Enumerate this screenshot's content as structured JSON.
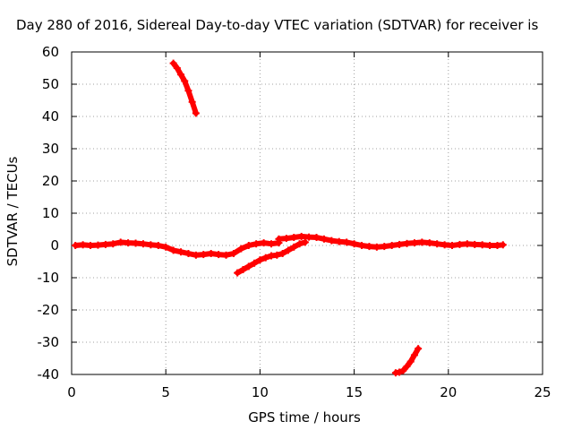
{
  "chart_data": {
    "type": "scatter",
    "title": "Day 280 of 2016, Sidereal Day-to-day VTEC variation (SDTVAR) for receiver is",
    "xlabel": "GPS time / hours",
    "ylabel": "SDTVAR / TECUs",
    "xlim": [
      0,
      25
    ],
    "ylim": [
      -40,
      60
    ],
    "xticks": [
      0,
      5,
      10,
      15,
      20,
      25
    ],
    "yticks": [
      -40,
      -30,
      -20,
      -10,
      0,
      10,
      20,
      30,
      40,
      50,
      60
    ],
    "grid": true,
    "legend": "none",
    "marker_color": "#ff0000",
    "series": [
      {
        "x": [
          0.2,
          0.6,
          1.0,
          1.4,
          1.8,
          2.2,
          2.6,
          3.0,
          3.4,
          3.8,
          4.2,
          4.6,
          5.0,
          5.4,
          5.8,
          6.2,
          6.6,
          7.0,
          7.4,
          7.8,
          8.2,
          8.6,
          9.0,
          9.4,
          9.8,
          10.2,
          10.6,
          11.0
        ],
        "y": [
          0.0,
          0.2,
          0.0,
          0.1,
          0.3,
          0.5,
          1.0,
          0.8,
          0.7,
          0.5,
          0.2,
          0.0,
          -0.5,
          -1.5,
          -2.0,
          -2.5,
          -3.0,
          -2.8,
          -2.5,
          -2.8,
          -3.0,
          -2.5,
          -1.0,
          0.0,
          0.5,
          0.8,
          0.5,
          0.8
        ]
      },
      {
        "x": [
          11.0,
          11.4,
          11.8,
          12.2,
          12.6,
          13.0,
          13.4,
          13.8,
          14.2,
          14.6,
          15.0,
          15.4,
          15.8,
          16.2,
          16.6,
          17.0,
          17.4,
          17.8,
          18.2,
          18.6,
          19.0,
          19.4,
          19.8,
          20.2,
          20.6,
          21.0,
          21.4,
          21.8,
          22.2,
          22.6,
          22.9
        ],
        "y": [
          2.0,
          2.2,
          2.5,
          2.8,
          2.6,
          2.5,
          2.0,
          1.5,
          1.2,
          1.0,
          0.5,
          0.0,
          -0.3,
          -0.5,
          -0.3,
          0.0,
          0.3,
          0.6,
          0.8,
          1.0,
          0.8,
          0.5,
          0.2,
          0.0,
          0.3,
          0.5,
          0.3,
          0.2,
          0.0,
          0.0,
          0.2
        ]
      },
      {
        "x": [
          8.8,
          9.1,
          9.4,
          9.7,
          10.0,
          10.3,
          10.6,
          10.9,
          11.2,
          11.5,
          11.8,
          12.1,
          12.4
        ],
        "y": [
          -8.5,
          -7.5,
          -6.5,
          -5.5,
          -4.5,
          -3.8,
          -3.2,
          -3.0,
          -2.5,
          -1.5,
          -0.5,
          0.5,
          1.0
        ]
      },
      {
        "x": [
          5.4,
          5.6,
          5.8,
          6.0,
          6.2,
          6.4,
          6.6
        ],
        "y": [
          56.5,
          55.0,
          53.0,
          51.0,
          48.0,
          44.5,
          41.0
        ]
      },
      {
        "x": [
          17.2,
          17.4,
          17.6,
          17.8,
          18.0,
          18.2,
          18.4
        ],
        "y": [
          -39.5,
          -39.3,
          -38.8,
          -37.5,
          -36.0,
          -34.0,
          -32.0
        ]
      }
    ]
  }
}
